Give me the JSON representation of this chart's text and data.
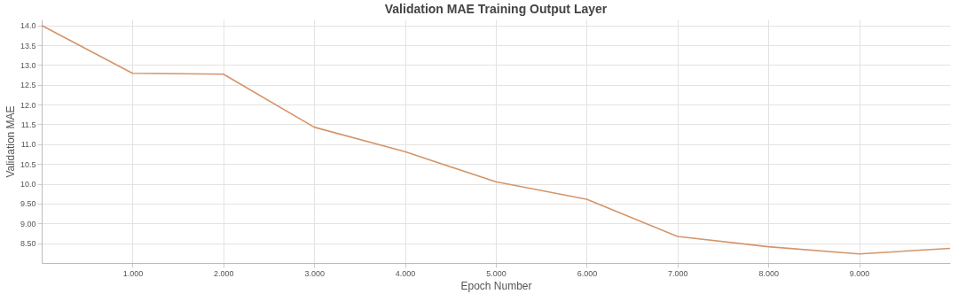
{
  "chart_data": {
    "type": "line",
    "title": "Validation MAE Training Output Layer",
    "xlabel": "Epoch Number",
    "ylabel": "Validation MAE",
    "x": [
      0,
      1,
      2,
      3,
      4,
      5,
      6,
      7,
      8,
      9,
      10
    ],
    "series": [
      {
        "color": "#d4956a",
        "values": [
          14.0,
          12.79,
          12.77,
          11.43,
          10.81,
          10.05,
          9.61,
          8.67,
          8.41,
          8.23,
          8.37
        ]
      }
    ],
    "xlim": [
      0,
      10
    ],
    "xticks": [
      {
        "value": 1,
        "label": "1.000"
      },
      {
        "value": 2,
        "label": "2.000"
      },
      {
        "value": 3,
        "label": "3.000"
      },
      {
        "value": 4,
        "label": "4.000"
      },
      {
        "value": 5,
        "label": "5.000"
      },
      {
        "value": 6,
        "label": "6.000"
      },
      {
        "value": 7,
        "label": "7.000"
      },
      {
        "value": 8,
        "label": "8.000"
      },
      {
        "value": 9,
        "label": "9.000"
      }
    ],
    "ylim": [
      8.0,
      14.15
    ],
    "yticks": [
      {
        "value": 8.5,
        "label": "8.50"
      },
      {
        "value": 9,
        "label": "9.00"
      },
      {
        "value": 9.5,
        "label": "9.50"
      },
      {
        "value": 10,
        "label": "10.0"
      },
      {
        "value": 10.5,
        "label": "10.5"
      },
      {
        "value": 11,
        "label": "11.0"
      },
      {
        "value": 11.5,
        "label": "11.5"
      },
      {
        "value": 12,
        "label": "12.0"
      },
      {
        "value": 12.5,
        "label": "12.5"
      },
      {
        "value": 13,
        "label": "13.0"
      },
      {
        "value": 13.5,
        "label": "13.5"
      },
      {
        "value": 14,
        "label": "14.0"
      }
    ],
    "grid": true,
    "marker": "none",
    "line_style": "solid"
  }
}
